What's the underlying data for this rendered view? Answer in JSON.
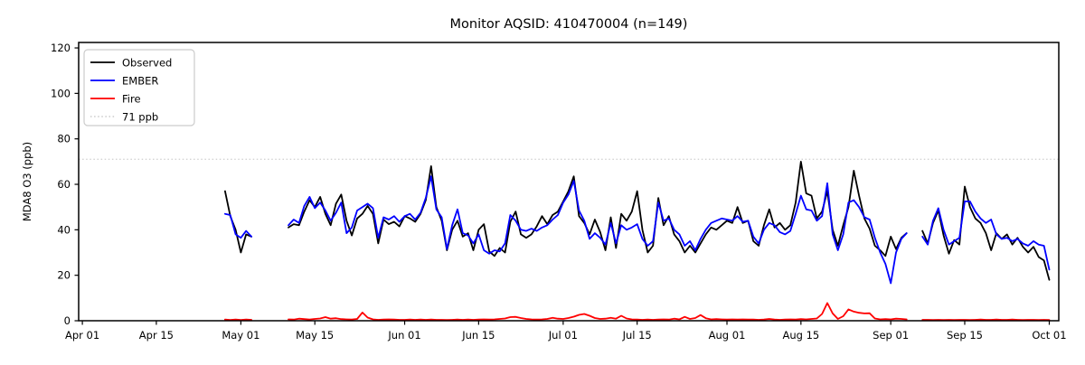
{
  "title": "Monitor AQSID: 410470004 (n=149)",
  "chart_data": {
    "type": "line",
    "title": "Monitor AQSID: 410470004 (n=149)",
    "xlabel": "",
    "ylabel": "MDA8 O3 (ppb)",
    "ylim": [
      0,
      122.4
    ],
    "yticks": [
      0,
      20,
      40,
      60,
      80,
      100,
      120
    ],
    "ytick_labels": [
      "0",
      "20",
      "40",
      "60",
      "80",
      "100",
      "120"
    ],
    "xtick_labels": [
      "Apr 01",
      "Apr 15",
      "May 01",
      "May 15",
      "Jun 01",
      "Jun 15",
      "Jul 01",
      "Jul 15",
      "Aug 01",
      "Aug 15",
      "Sep 01",
      "Sep 15",
      "Oct 01"
    ],
    "xtick_days": [
      0,
      14,
      30,
      44,
      61,
      75,
      91,
      105,
      122,
      136,
      153,
      167,
      183
    ],
    "xlim_days": [
      -0.7,
      184.8
    ],
    "grid": false,
    "legend_position": "upper-left",
    "legend": [
      "Observed",
      "EMBER",
      "Fire",
      "71 ppb"
    ],
    "n_points": 149,
    "start_day_offset": 27,
    "start_date_label": "Apr 28",
    "reference_line": {
      "value": 71,
      "label": "71 ppb",
      "color": "#d3d3d3",
      "style": "dotted"
    },
    "series": [
      {
        "name": "Observed",
        "color": "#000000",
        "values": [
          57,
          46,
          40,
          30,
          38,
          37,
          null,
          null,
          null,
          null,
          null,
          null,
          41,
          42.5,
          42,
          48,
          53,
          50,
          54.5,
          47,
          42,
          51.5,
          55.5,
          44,
          37.5,
          45,
          47,
          50.5,
          47,
          34,
          44.5,
          42.5,
          43.5,
          41.5,
          46,
          45,
          43.5,
          47,
          53,
          68,
          50,
          44,
          31,
          40,
          44,
          37,
          38.5,
          31,
          40,
          42.5,
          30.5,
          28.5,
          32,
          30,
          43.5,
          48,
          38,
          36.5,
          38,
          41.5,
          46,
          42.5,
          46.5,
          48,
          52.5,
          57,
          63.5,
          46,
          43,
          38,
          44.5,
          39,
          31,
          45.5,
          32,
          47,
          44,
          48,
          57,
          40,
          30,
          33,
          54,
          42,
          46,
          38,
          35,
          30,
          33,
          30,
          34,
          38,
          41,
          40,
          42,
          44,
          43,
          50,
          43,
          44,
          35,
          33,
          42,
          49,
          41,
          43,
          40,
          42,
          52,
          70,
          56,
          55,
          45,
          48,
          57,
          40,
          33,
          42,
          50,
          66,
          55,
          45,
          40.5,
          33,
          31,
          28.5,
          37,
          31.5,
          36.5,
          38.5,
          null,
          null,
          39.5,
          34,
          43,
          48.5,
          37.5,
          29.5,
          35.5,
          33.5,
          59,
          50,
          45,
          43,
          38.5,
          31,
          38.5,
          36,
          38,
          33.5,
          36.5,
          32.5,
          30,
          32.5,
          28,
          26.5,
          18
        ]
      },
      {
        "name": "EMBER",
        "color": "#0000ff",
        "values": [
          47,
          46.5,
          38,
          36.5,
          39.5,
          37,
          null,
          null,
          null,
          null,
          null,
          null,
          42,
          44.5,
          43,
          50.5,
          54.5,
          49.5,
          52,
          48.5,
          44,
          47.5,
          52,
          38.5,
          41,
          48.5,
          50,
          51.5,
          49.5,
          36.5,
          45.5,
          44.5,
          46,
          43.5,
          46,
          47,
          44.5,
          47.5,
          54,
          63.5,
          49,
          45.5,
          31.5,
          42,
          49,
          38.5,
          37.5,
          34,
          38,
          31,
          29.5,
          31,
          30.5,
          34,
          46.5,
          44,
          40,
          39.5,
          40.5,
          39.5,
          41,
          42,
          44.5,
          46.5,
          52,
          55.5,
          61.5,
          48.5,
          44,
          36,
          38.5,
          36.5,
          33.5,
          43,
          34,
          42,
          40,
          41,
          42.5,
          36,
          33,
          35,
          52,
          44,
          45,
          40,
          38,
          33,
          35,
          31,
          36,
          40,
          43,
          44,
          45,
          44.5,
          44,
          46,
          43.5,
          44,
          37,
          34,
          40,
          43,
          42,
          39,
          38,
          39.5,
          47,
          55,
          49,
          48.5,
          44,
          46,
          60.5,
          38,
          31,
          38,
          52,
          53,
          50,
          45.5,
          44.5,
          36.5,
          30,
          25,
          16.5,
          30,
          36,
          38.5,
          null,
          null,
          37,
          33.5,
          44,
          49.5,
          40,
          33.5,
          35,
          36.5,
          52.5,
          52.5,
          48,
          45,
          43,
          44.5,
          38,
          36,
          36.5,
          35,
          36,
          34,
          33,
          35,
          33.5,
          33,
          22.5
        ]
      },
      {
        "name": "Fire",
        "color": "#ff0000",
        "values": [
          0.5,
          0.3,
          0.5,
          0.3,
          0.5,
          0.4,
          null,
          null,
          null,
          null,
          null,
          null,
          0.6,
          0.5,
          0.9,
          0.7,
          0.5,
          0.8,
          1.0,
          1.6,
          0.9,
          1.1,
          0.7,
          0.6,
          0.5,
          0.8,
          3.6,
          1.4,
          0.6,
          0.4,
          0.5,
          0.6,
          0.5,
          0.4,
          0.4,
          0.5,
          0.4,
          0.5,
          0.4,
          0.5,
          0.4,
          0.4,
          0.3,
          0.4,
          0.5,
          0.4,
          0.5,
          0.4,
          0.5,
          0.6,
          0.5,
          0.6,
          0.8,
          1.0,
          1.6,
          1.7,
          1.2,
          0.8,
          0.6,
          0.5,
          0.6,
          0.8,
          1.3,
          0.9,
          0.8,
          1.2,
          1.8,
          2.6,
          3.0,
          2.2,
          1.2,
          0.8,
          0.9,
          1.3,
          0.9,
          2.2,
          1.0,
          0.6,
          0.5,
          0.4,
          0.5,
          0.4,
          0.5,
          0.6,
          0.5,
          0.9,
          0.6,
          1.7,
          0.8,
          1.2,
          2.5,
          1.1,
          0.6,
          0.7,
          0.6,
          0.5,
          0.6,
          0.5,
          0.6,
          0.5,
          0.5,
          0.4,
          0.5,
          0.8,
          0.5,
          0.4,
          0.5,
          0.6,
          0.5,
          0.7,
          0.6,
          0.8,
          1.0,
          3.0,
          7.8,
          3.2,
          0.8,
          2.0,
          5.0,
          4.0,
          3.5,
          3.2,
          3.3,
          1.0,
          0.6,
          0.7,
          0.6,
          0.9,
          0.8,
          0.6,
          null,
          null,
          0.4,
          0.4,
          0.3,
          0.4,
          0.3,
          0.4,
          0.3,
          0.4,
          0.4,
          0.3,
          0.4,
          0.5,
          0.4,
          0.4,
          0.5,
          0.4,
          0.4,
          0.5,
          0.4,
          0.3,
          0.4,
          0.4,
          0.3,
          0.4,
          0.3
        ]
      }
    ],
    "colors": {
      "observed": "#000000",
      "ember": "#0000ff",
      "fire": "#ff0000",
      "reference": "#d3d3d3",
      "spine": "#000000",
      "legend_border": "#cccccc"
    }
  }
}
